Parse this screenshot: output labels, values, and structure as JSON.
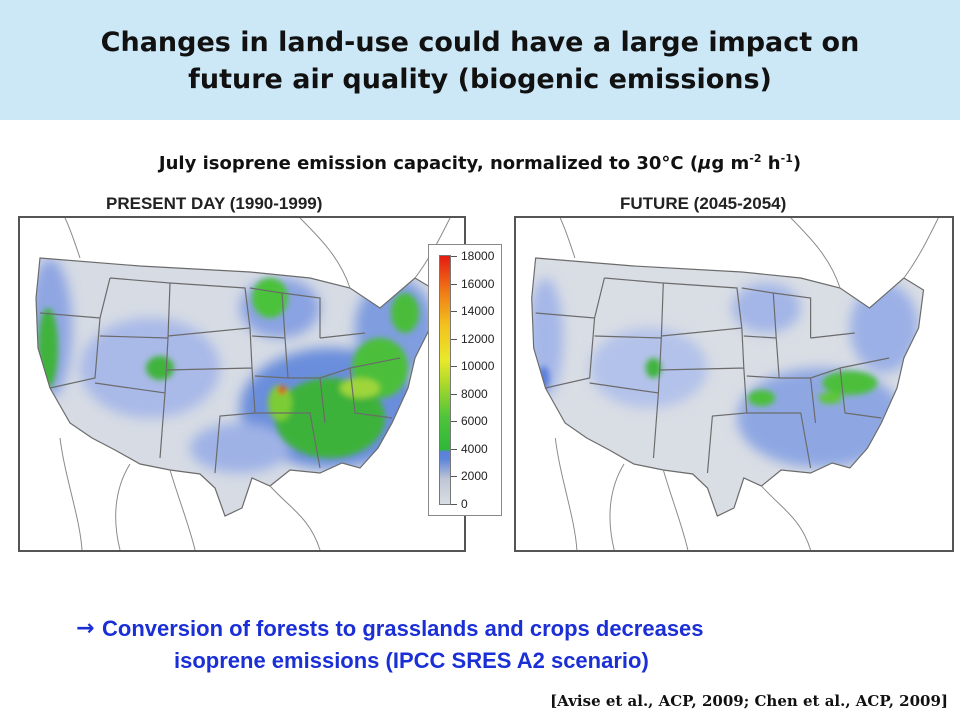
{
  "slide": {
    "title_line1": "Changes in land-use could have a large impact on",
    "title_line2": "future air quality (biogenic emissions)",
    "subtitle_main": "July isoprene emission capacity, normalized to 30°C (",
    "subtitle_mu": "μ",
    "subtitle_unit_g": "g m",
    "subtitle_exp1": "-2",
    "subtitle_unit_h": " h",
    "subtitle_exp2": "-1",
    "subtitle_close": ")"
  },
  "panels": [
    {
      "label": "PRESENT DAY (1990-1999)",
      "scenario": "present"
    },
    {
      "label": "FUTURE (2045-2054)",
      "scenario": "future"
    }
  ],
  "legend": {
    "ticks": [
      "18000",
      "16000",
      "14000",
      "12000",
      "10000",
      "8000",
      "6000",
      "4000",
      "2000",
      "0"
    ],
    "min": 0,
    "max": 18000,
    "colors": {
      "low": "#d9dde4",
      "blue": "#5a7fdb",
      "green": "#2fb83a",
      "yellow": "#e9e92a",
      "red": "#e51b12"
    }
  },
  "bullet": {
    "arrow_icon": "right-arrow-icon",
    "line1": "Conversion of forests to grasslands and crops decreases",
    "line2": "isoprene emissions (IPCC SRES A2 scenario)"
  },
  "citation": "[Avise et al., ACP, 2009; Chen et al., ACP, 2009]"
}
